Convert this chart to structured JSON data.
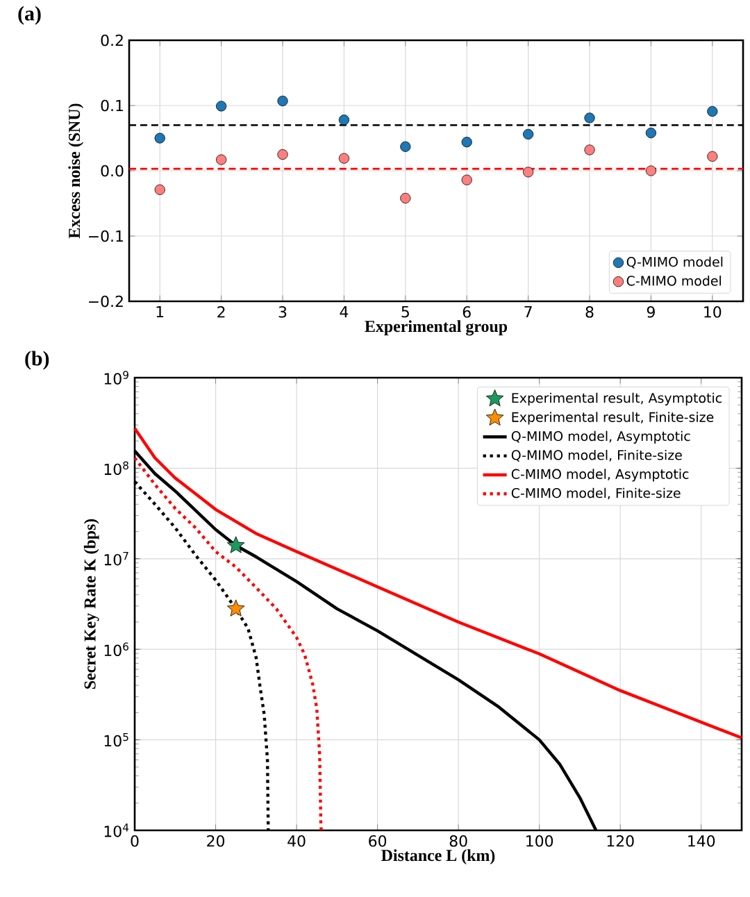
{
  "chart_data": [
    {
      "type": "scatter",
      "annotations": [
        "(a)"
      ],
      "xlabel": "Experimental group",
      "ylabel": "Excess noise (SNU)",
      "categories": [
        "1",
        "2",
        "3",
        "4",
        "5",
        "6",
        "7",
        "8",
        "9",
        "10"
      ],
      "series": [
        {
          "name": "Q-MIMO model",
          "marker": "circle",
          "color": "#1f77b4",
          "values": [
            0.05,
            0.099,
            0.107,
            0.078,
            0.037,
            0.044,
            0.056,
            0.081,
            0.058,
            0.091
          ]
        },
        {
          "name": "C-MIMO model",
          "marker": "circle",
          "color": "#ff7f7f",
          "values": [
            -0.029,
            0.017,
            0.025,
            0.019,
            -0.042,
            -0.014,
            -0.002,
            0.032,
            0.0,
            0.022
          ]
        }
      ],
      "ylim": [
        -0.2,
        0.2
      ],
      "yticks": [
        {
          "value": -0.2,
          "label": "−0.2"
        },
        {
          "value": -0.1,
          "label": "−0.1"
        },
        {
          "value": 0.0,
          "label": "0.0"
        },
        0.1,
        0.2
      ],
      "ref_lines": [
        {
          "axis": "y",
          "value": 0.07,
          "color": "#000000",
          "line_style": "dashed"
        },
        {
          "axis": "y",
          "value": 0.003,
          "color": "#ff0000",
          "line_style": "dashed"
        }
      ],
      "grid": true,
      "legend": "bottom right"
    },
    {
      "type": "line",
      "annotations": [
        "(b)"
      ],
      "xlabel": "Distance L (km)",
      "ylabel": "Secret Key Rate K (bps)",
      "series": [
        {
          "name": "Experimental result, Asymptotic",
          "type": "scatter",
          "marker": "star",
          "color": "#1a9a5c",
          "x": [
            25
          ],
          "values": [
            14000000.0
          ]
        },
        {
          "name": "Experimental result, Finite-size",
          "type": "scatter",
          "marker": "star",
          "color": "#ff8c00",
          "x": [
            25
          ],
          "values": [
            2800000.0
          ]
        },
        {
          "name": "Q-MIMO model, Asymptotic",
          "color": "#000000",
          "line_style": "solid",
          "x": [
            0,
            5,
            10,
            20,
            25,
            30,
            40,
            50,
            60,
            80,
            90,
            100,
            105,
            110,
            114
          ],
          "values": [
            155000000.0,
            87000000.0,
            56000000.0,
            21000000.0,
            14000000.0,
            10500000.0,
            5600000.0,
            2800000.0,
            1600000.0,
            460000.0,
            230000.0,
            100000.0,
            54000.0,
            23000.0,
            10000.0
          ]
        },
        {
          "name": "Q-MIMO model, Finite-size",
          "color": "#000000",
          "line_style": "dotted",
          "x": [
            0,
            5,
            10,
            15,
            20,
            25,
            28,
            30,
            31,
            32,
            32.8,
            33
          ],
          "values": [
            71000000.0,
            40000000.0,
            22000000.0,
            11000000.0,
            5800000.0,
            2800000.0,
            1700000.0,
            810000.0,
            380000.0,
            190000.0,
            60000.0,
            10000.0
          ]
        },
        {
          "name": "C-MIMO model, Asymptotic",
          "color": "#ff0000",
          "line_style": "solid",
          "x": [
            0,
            5,
            10,
            20,
            30,
            40,
            60,
            80,
            100,
            120,
            150
          ],
          "values": [
            275000000.0,
            130000000.0,
            78000000.0,
            35000000.0,
            19000000.0,
            12000000.0,
            4900000.0,
            2000000.0,
            890000.0,
            350000.0,
            105000.0
          ]
        },
        {
          "name": "C-MIMO model, Finite-size",
          "color": "#ff0000",
          "line_style": "dotted",
          "x": [
            0,
            5,
            10,
            15,
            20,
            25,
            30,
            35,
            40,
            42,
            44,
            45,
            45.7,
            46,
            46.1
          ],
          "values": [
            130000000.0,
            66000000.0,
            36000000.0,
            22000000.0,
            12000000.0,
            8100000.0,
            4800000.0,
            2800000.0,
            1350000.0,
            870000.0,
            410000.0,
            220000.0,
            69000.0,
            12000.0,
            10000.0
          ]
        }
      ],
      "xlim": [
        0,
        150
      ],
      "xticks": [
        0,
        20,
        40,
        60,
        80,
        100,
        120,
        140
      ],
      "ylim": [
        10000.0,
        1000000000.0
      ],
      "yticks": [
        {
          "value": 10000.0,
          "label": "10$^{4}$"
        },
        {
          "value": 100000.0,
          "label": "10$^{5}$"
        },
        {
          "value": 1000000.0,
          "label": "10$^{6}$"
        },
        {
          "value": 10000000.0,
          "label": "10$^{7}$"
        },
        {
          "value": 100000000.0,
          "label": "10$^{8}$"
        },
        {
          "value": 1000000000.0,
          "label": "10$^{9}$"
        }
      ],
      "log": "y",
      "grid": true,
      "legend": "top right"
    }
  ]
}
